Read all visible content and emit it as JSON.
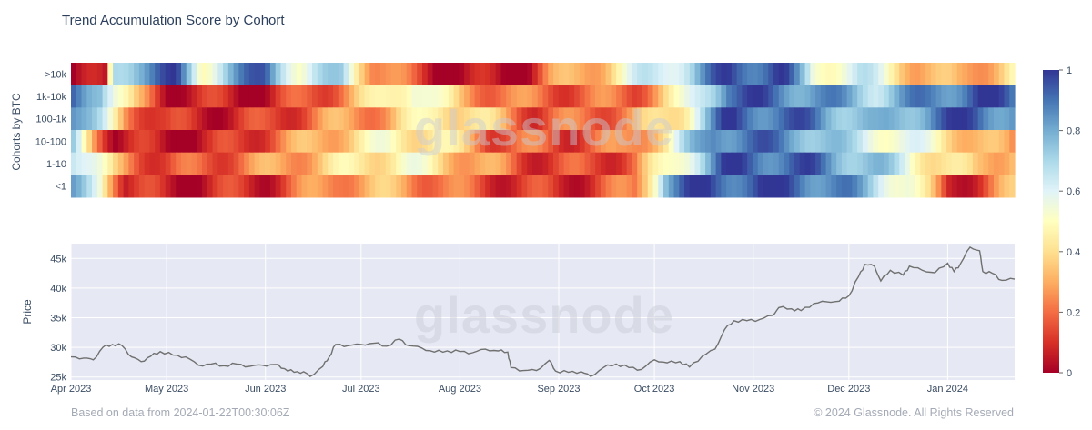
{
  "chart_data": [
    {
      "type": "heatmap",
      "title": "Trend Accumulation Score by Cohort",
      "ylabel": "Cohorts by BTC",
      "rows": [
        ">10k",
        "1k-10k",
        "100-1k",
        "10-100",
        "1-10",
        "<1"
      ],
      "x_start": "2023-04-01",
      "x_end": "2024-01-22",
      "colorscale_range": [
        0,
        1
      ],
      "colorbar_ticks": [
        "0",
        "0.2",
        "0.4",
        "0.6",
        "0.8",
        "1"
      ],
      "colors": {
        "low": "#a50026",
        "high": "#313695"
      },
      "row_segments": {
        ">10k": [
          [
            "2023-04-01",
            0.0
          ],
          [
            "2023-04-12",
            0.0
          ],
          [
            "2023-04-14",
            0.7
          ],
          [
            "2023-04-22",
            0.85
          ],
          [
            "2023-05-04",
            0.92
          ],
          [
            "2023-05-12",
            0.55
          ],
          [
            "2023-05-20",
            0.75
          ],
          [
            "2023-06-01",
            0.93
          ],
          [
            "2023-06-12",
            0.55
          ],
          [
            "2023-06-25",
            0.7
          ],
          [
            "2023-07-05",
            0.3
          ],
          [
            "2023-07-18",
            0.12
          ],
          [
            "2023-08-01",
            0.02
          ],
          [
            "2023-08-20",
            0.02
          ],
          [
            "2023-08-29",
            0.22
          ],
          [
            "2023-09-15",
            0.38
          ],
          [
            "2023-09-28",
            0.6
          ],
          [
            "2023-10-12",
            0.72
          ],
          [
            "2023-10-24",
            0.95
          ],
          [
            "2023-11-10",
            0.97
          ],
          [
            "2023-11-20",
            0.55
          ],
          [
            "2023-12-05",
            0.62
          ],
          [
            "2023-12-22",
            0.35
          ],
          [
            "2024-01-05",
            0.25
          ],
          [
            "2024-01-22",
            0.45
          ]
        ],
        "1k-10k": [
          [
            "2023-04-01",
            0.9
          ],
          [
            "2023-04-10",
            0.85
          ],
          [
            "2023-04-15",
            0.55
          ],
          [
            "2023-04-22",
            0.25
          ],
          [
            "2023-05-01",
            0.08
          ],
          [
            "2023-06-01",
            0.05
          ],
          [
            "2023-06-20",
            0.2
          ],
          [
            "2023-07-05",
            0.38
          ],
          [
            "2023-07-18",
            0.62
          ],
          [
            "2023-08-01",
            0.3
          ],
          [
            "2023-08-20",
            0.2
          ],
          [
            "2023-09-10",
            0.18
          ],
          [
            "2023-09-25",
            0.2
          ],
          [
            "2023-10-10",
            0.45
          ],
          [
            "2023-10-24",
            0.95
          ],
          [
            "2023-11-20",
            0.85
          ],
          [
            "2023-12-10",
            0.72
          ],
          [
            "2023-12-28",
            0.88
          ],
          [
            "2024-01-10",
            0.95
          ],
          [
            "2024-01-22",
            0.9
          ]
        ],
        "100-1k": [
          [
            "2023-04-01",
            0.92
          ],
          [
            "2023-04-10",
            0.6
          ],
          [
            "2023-04-18",
            0.3
          ],
          [
            "2023-05-01",
            0.07
          ],
          [
            "2023-06-01",
            0.1
          ],
          [
            "2023-06-20",
            0.25
          ],
          [
            "2023-07-10",
            0.3
          ],
          [
            "2023-07-25",
            0.5
          ],
          [
            "2023-08-10",
            0.35
          ],
          [
            "2023-08-25",
            0.15
          ],
          [
            "2023-09-10",
            0.2
          ],
          [
            "2023-09-25",
            0.25
          ],
          [
            "2023-10-10",
            0.5
          ],
          [
            "2023-10-24",
            0.95
          ],
          [
            "2023-11-20",
            0.88
          ],
          [
            "2023-12-10",
            0.7
          ],
          [
            "2023-12-28",
            0.9
          ],
          [
            "2024-01-10",
            0.95
          ],
          [
            "2024-01-22",
            0.85
          ]
        ],
        "10-100": [
          [
            "2023-04-01",
            0.7
          ],
          [
            "2023-04-08",
            0.35
          ],
          [
            "2023-04-15",
            0.05
          ],
          [
            "2023-05-15",
            0.05
          ],
          [
            "2023-06-10",
            0.25
          ],
          [
            "2023-06-25",
            0.38
          ],
          [
            "2023-07-10",
            0.48
          ],
          [
            "2023-07-25",
            0.45
          ],
          [
            "2023-08-10",
            0.2
          ],
          [
            "2023-09-01",
            0.15
          ],
          [
            "2023-09-20",
            0.2
          ],
          [
            "2023-10-05",
            0.45
          ],
          [
            "2023-10-20",
            0.92
          ],
          [
            "2023-11-15",
            0.85
          ],
          [
            "2023-12-01",
            0.65
          ],
          [
            "2023-12-20",
            0.55
          ],
          [
            "2024-01-05",
            0.4
          ],
          [
            "2024-01-22",
            0.2
          ]
        ],
        "1-10": [
          [
            "2023-04-01",
            0.75
          ],
          [
            "2023-04-08",
            0.55
          ],
          [
            "2023-04-15",
            0.3
          ],
          [
            "2023-05-01",
            0.12
          ],
          [
            "2023-06-01",
            0.25
          ],
          [
            "2023-06-25",
            0.4
          ],
          [
            "2023-07-15",
            0.5
          ],
          [
            "2023-08-01",
            0.35
          ],
          [
            "2023-08-20",
            0.15
          ],
          [
            "2023-09-10",
            0.12
          ],
          [
            "2023-09-25",
            0.2
          ],
          [
            "2023-10-10",
            0.6
          ],
          [
            "2023-10-24",
            0.95
          ],
          [
            "2023-11-20",
            0.9
          ],
          [
            "2023-12-10",
            0.72
          ],
          [
            "2023-12-28",
            0.45
          ],
          [
            "2024-01-10",
            0.3
          ],
          [
            "2024-01-22",
            0.4
          ]
        ],
        "<1": [
          [
            "2023-04-01",
            0.75
          ],
          [
            "2023-04-10",
            0.6
          ],
          [
            "2023-04-18",
            0.1
          ],
          [
            "2023-05-01",
            0.05
          ],
          [
            "2023-06-01",
            0.1
          ],
          [
            "2023-06-25",
            0.3
          ],
          [
            "2023-07-15",
            0.3
          ],
          [
            "2023-08-05",
            0.15
          ],
          [
            "2023-09-01",
            0.08
          ],
          [
            "2023-09-25",
            0.2
          ],
          [
            "2023-10-05",
            0.85
          ],
          [
            "2023-10-15",
            0.95
          ],
          [
            "2023-11-15",
            0.95
          ],
          [
            "2023-12-01",
            0.82
          ],
          [
            "2023-12-20",
            0.55
          ],
          [
            "2024-01-01",
            0.08
          ],
          [
            "2024-01-12",
            0.15
          ],
          [
            "2024-01-22",
            0.3
          ]
        ]
      },
      "watermark": "glassnode"
    },
    {
      "type": "line",
      "ylabel": "Price",
      "xlabel": "",
      "ylim": [
        24500,
        47500
      ],
      "y_ticks": [
        "25k",
        "30k",
        "35k",
        "40k",
        "45k"
      ],
      "x_ticks": [
        "Apr 2023",
        "May 2023",
        "Jun 2023",
        "Jul 2023",
        "Aug 2023",
        "Sep 2023",
        "Oct 2023",
        "Nov 2023",
        "Dec 2023",
        "Jan 2024"
      ],
      "x_tick_dates": [
        "2023-04-01",
        "2023-05-01",
        "2023-06-01",
        "2023-07-01",
        "2023-08-01",
        "2023-09-01",
        "2023-10-01",
        "2023-11-01",
        "2023-12-01",
        "2024-01-01"
      ],
      "series": [
        {
          "line_color": "#707070",
          "points": [
            [
              "2023-04-01",
              28400
            ],
            [
              "2023-04-05",
              28200
            ],
            [
              "2023-04-08",
              27900
            ],
            [
              "2023-04-11",
              30000
            ],
            [
              "2023-04-14",
              30500
            ],
            [
              "2023-04-17",
              30300
            ],
            [
              "2023-04-20",
              28400
            ],
            [
              "2023-04-23",
              27600
            ],
            [
              "2023-04-26",
              28500
            ],
            [
              "2023-04-29",
              29300
            ],
            [
              "2023-05-03",
              28700
            ],
            [
              "2023-05-07",
              28400
            ],
            [
              "2023-05-11",
              27000
            ],
            [
              "2023-05-15",
              27200
            ],
            [
              "2023-05-19",
              26900
            ],
            [
              "2023-05-23",
              27200
            ],
            [
              "2023-05-27",
              26800
            ],
            [
              "2023-05-31",
              27000
            ],
            [
              "2023-06-04",
              27100
            ],
            [
              "2023-06-07",
              26400
            ],
            [
              "2023-06-10",
              25800
            ],
            [
              "2023-06-13",
              25900
            ],
            [
              "2023-06-15",
              25100
            ],
            [
              "2023-06-19",
              26800
            ],
            [
              "2023-06-21",
              28400
            ],
            [
              "2023-06-23",
              30500
            ],
            [
              "2023-06-27",
              30300
            ],
            [
              "2023-07-01",
              30500
            ],
            [
              "2023-07-05",
              30700
            ],
            [
              "2023-07-09",
              30200
            ],
            [
              "2023-07-13",
              31400
            ],
            [
              "2023-07-16",
              30300
            ],
            [
              "2023-07-20",
              29900
            ],
            [
              "2023-07-24",
              29200
            ],
            [
              "2023-07-28",
              29400
            ],
            [
              "2023-08-01",
              29300
            ],
            [
              "2023-08-05",
              29100
            ],
            [
              "2023-08-09",
              29700
            ],
            [
              "2023-08-13",
              29400
            ],
            [
              "2023-08-16",
              29200
            ],
            [
              "2023-08-17",
              26600
            ],
            [
              "2023-08-21",
              26100
            ],
            [
              "2023-08-25",
              26100
            ],
            [
              "2023-08-29",
              27800
            ],
            [
              "2023-08-31",
              26000
            ],
            [
              "2023-09-04",
              25800
            ],
            [
              "2023-09-08",
              25900
            ],
            [
              "2023-09-11",
              25100
            ],
            [
              "2023-09-15",
              26600
            ],
            [
              "2023-09-19",
              27200
            ],
            [
              "2023-09-23",
              26600
            ],
            [
              "2023-09-27",
              26300
            ],
            [
              "2023-10-01",
              27900
            ],
            [
              "2023-10-05",
              27400
            ],
            [
              "2023-10-09",
              27600
            ],
            [
              "2023-10-12",
              26700
            ],
            [
              "2023-10-16",
              28500
            ],
            [
              "2023-10-20",
              29700
            ],
            [
              "2023-10-23",
              33000
            ],
            [
              "2023-10-26",
              34500
            ],
            [
              "2023-10-30",
              34500
            ],
            [
              "2023-11-03",
              34700
            ],
            [
              "2023-11-07",
              35400
            ],
            [
              "2023-11-09",
              36700
            ],
            [
              "2023-11-13",
              36500
            ],
            [
              "2023-11-16",
              36200
            ],
            [
              "2023-11-20",
              37400
            ],
            [
              "2023-11-24",
              37700
            ],
            [
              "2023-11-28",
              37800
            ],
            [
              "2023-12-01",
              38700
            ],
            [
              "2023-12-04",
              41900
            ],
            [
              "2023-12-06",
              44000
            ],
            [
              "2023-12-09",
              43700
            ],
            [
              "2023-12-11",
              41200
            ],
            [
              "2023-12-14",
              43000
            ],
            [
              "2023-12-18",
              42200
            ],
            [
              "2023-12-20",
              43700
            ],
            [
              "2023-12-24",
              43000
            ],
            [
              "2023-12-28",
              42600
            ],
            [
              "2024-01-01",
              44200
            ],
            [
              "2024-01-03",
              42800
            ],
            [
              "2024-01-05",
              44100
            ],
            [
              "2024-01-08",
              46900
            ],
            [
              "2024-01-11",
              46300
            ],
            [
              "2024-01-12",
              42800
            ],
            [
              "2024-01-15",
              42500
            ],
            [
              "2024-01-18",
              41300
            ],
            [
              "2024-01-22",
              41500
            ]
          ]
        }
      ],
      "watermark": "glassnode"
    }
  ],
  "footer": {
    "source_note": "Based on data from 2024-01-22T00:30:06Z",
    "copyright": "© 2024 Glassnode. All Rights Reserved"
  }
}
